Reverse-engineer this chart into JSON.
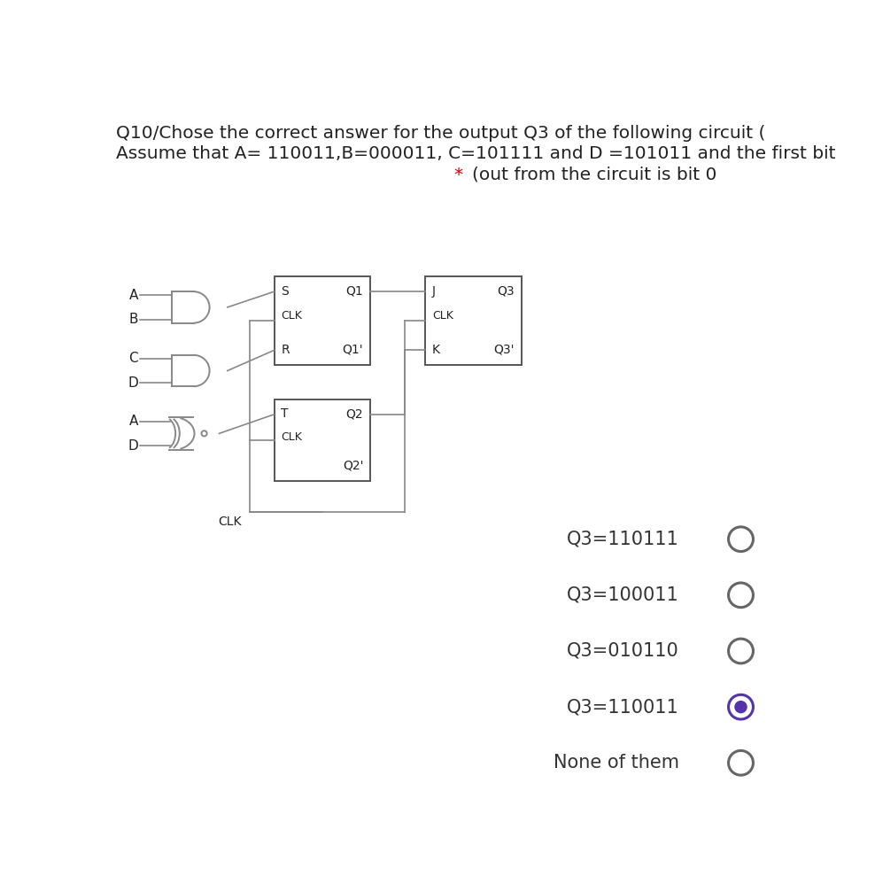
{
  "title_line1": "Q10/Chose the correct answer for the output Q3 of the following circuit (",
  "title_line2": "Assume that A= 110011,B=000011, C=101111 and D =101011 and the first bit",
  "title_line3_main": "(out from the circuit is bit 0",
  "title_star_color": "#cc0000",
  "bg_color": "#ffffff",
  "text_color": "#222222",
  "gate_color": "#888888",
  "ff_color": "#555555",
  "wire_color": "#888888",
  "options": [
    {
      "label": "Q3=110111",
      "selected": false
    },
    {
      "label": "Q3=100011",
      "selected": false
    },
    {
      "label": "Q3=010110",
      "selected": false
    },
    {
      "label": "Q3=110011",
      "selected": true
    },
    {
      "label": "None of them",
      "selected": false
    }
  ],
  "selected_color": "#5533aa",
  "unselected_color": "#666666",
  "option_fontsize": 15,
  "title_fontsize": 14.5,
  "ff_label_fontsize": 10,
  "ff_clk_fontsize": 9,
  "input_label_fontsize": 11,
  "clk_label_fontsize": 10
}
